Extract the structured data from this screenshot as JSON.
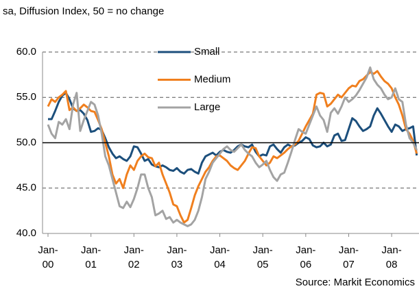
{
  "chart_data": {
    "type": "line",
    "title": "sa, Diffusion Index, 50 = no change",
    "source": "Source: Markit Economics",
    "categories": [
      "Jan-00",
      null,
      null,
      null,
      null,
      null,
      null,
      null,
      null,
      null,
      null,
      null,
      "Jan-01",
      null,
      null,
      null,
      null,
      null,
      null,
      null,
      null,
      null,
      null,
      null,
      "Jan-02",
      null,
      null,
      null,
      null,
      null,
      null,
      null,
      null,
      null,
      null,
      null,
      "Jan-03",
      null,
      null,
      null,
      null,
      null,
      null,
      null,
      null,
      null,
      null,
      null,
      "Jan-04",
      null,
      null,
      null,
      null,
      null,
      null,
      null,
      null,
      null,
      null,
      null,
      "Jan-05",
      null,
      null,
      null,
      null,
      null,
      null,
      null,
      null,
      null,
      null,
      null,
      "Jan-06",
      null,
      null,
      null,
      null,
      null,
      null,
      null,
      null,
      null,
      null,
      null,
      "Jan-07",
      null,
      null,
      null,
      null,
      null,
      null,
      null,
      null,
      null,
      null,
      null,
      "Jan-08",
      null,
      null,
      null,
      null,
      null,
      null,
      null
    ],
    "series": [
      {
        "name": "Small",
        "color": "#1c4f7c",
        "values": [
          52.6,
          52.6,
          53.5,
          54.5,
          55.2,
          55.5,
          54.8,
          53.8,
          53.5,
          53.6,
          53.2,
          52.5,
          51.2,
          51.3,
          51.6,
          51.4,
          50.5,
          49.5,
          48.8,
          48.3,
          48.5,
          48.2,
          48.0,
          48.5,
          49.6,
          49.5,
          48.8,
          48.0,
          48.2,
          47.6,
          47.4,
          47.3,
          47.5,
          47.3,
          47.0,
          46.9,
          47.2,
          46.8,
          46.6,
          47.0,
          47.1,
          46.8,
          46.6,
          47.8,
          48.5,
          48.7,
          48.9,
          48.6,
          49.0,
          49.2,
          49.0,
          48.9,
          49.2,
          49.6,
          49.8,
          49.6,
          49.5,
          49.8,
          49.0,
          48.5,
          48.7,
          48.6,
          49.6,
          49.8,
          49.3,
          48.9,
          49.5,
          49.8,
          49.6,
          49.7,
          50.0,
          50.2,
          50.6,
          50.4,
          49.7,
          49.5,
          49.6,
          50.0,
          49.6,
          49.8,
          50.8,
          51.0,
          50.2,
          50.3,
          51.5,
          52.7,
          52.4,
          51.8,
          51.3,
          51.5,
          51.8,
          53.0,
          53.8,
          53.2,
          52.5,
          51.8,
          51.2,
          52.0,
          51.8,
          51.3,
          51.5,
          51.6,
          51.8,
          48.6
        ]
      },
      {
        "name": "Medium",
        "color": "#f07f1e",
        "values": [
          54.0,
          54.8,
          54.5,
          55.0,
          55.3,
          55.7,
          53.6,
          53.9,
          53.5,
          53.8,
          54.2,
          53.9,
          53.5,
          53.4,
          52.5,
          51.5,
          50.0,
          48.5,
          46.5,
          45.5,
          46.0,
          45.0,
          46.5,
          47.5,
          47.0,
          48.0,
          48.5,
          48.8,
          48.4,
          48.3,
          47.4,
          47.8,
          46.5,
          45.5,
          44.5,
          43.2,
          43.0,
          42.0,
          41.2,
          41.5,
          42.8,
          44.2,
          45.2,
          46.0,
          46.8,
          47.3,
          48.0,
          48.5,
          48.6,
          48.3,
          48.0,
          47.5,
          47.2,
          47.0,
          47.5,
          48.0,
          48.8,
          49.5,
          49.4,
          48.5,
          48.0,
          47.5,
          47.8,
          48.5,
          48.3,
          48.6,
          48.9,
          49.3,
          49.6,
          49.8,
          50.2,
          51.0,
          51.8,
          52.5,
          53.2,
          55.3,
          55.5,
          55.4,
          54.0,
          54.3,
          54.8,
          55.3,
          55.0,
          55.5,
          56.0,
          56.3,
          56.2,
          56.8,
          57.0,
          57.4,
          57.8,
          57.6,
          57.9,
          57.3,
          56.8,
          56.5,
          56.0,
          55.0,
          54.2,
          53.0,
          51.5,
          51.0,
          50.2,
          48.8
        ]
      },
      {
        "name": "Large",
        "color": "#a3a3a3",
        "values": [
          52.0,
          51.0,
          50.5,
          52.3,
          52.0,
          52.6,
          51.5,
          54.2,
          55.5,
          51.3,
          52.5,
          53.5,
          54.5,
          54.2,
          53.0,
          51.0,
          48.5,
          47.5,
          46.0,
          44.5,
          43.0,
          42.8,
          43.5,
          42.9,
          43.8,
          45.0,
          46.5,
          46.5,
          45.0,
          44.0,
          42.0,
          42.2,
          42.5,
          41.6,
          41.8,
          41.2,
          41.5,
          41.2,
          41.0,
          40.8,
          41.0,
          41.5,
          42.5,
          44.0,
          46.0,
          46.8,
          47.8,
          48.3,
          48.8,
          49.3,
          49.6,
          49.2,
          49.0,
          49.4,
          49.8,
          49.2,
          48.8,
          48.5,
          47.8,
          47.3,
          47.6,
          48.0,
          47.0,
          46.2,
          45.8,
          46.5,
          46.7,
          47.8,
          49.0,
          50.3,
          51.5,
          51.2,
          51.0,
          52.0,
          53.0,
          54.0,
          53.0,
          52.5,
          51.2,
          53.3,
          53.8,
          53.2,
          54.0,
          55.0,
          54.5,
          54.8,
          55.2,
          55.8,
          56.5,
          57.2,
          58.3,
          57.0,
          56.4,
          56.0,
          55.3,
          54.8,
          55.0,
          56.0,
          54.8,
          54.5,
          52.0,
          50.5,
          50.0,
          49.2
        ]
      }
    ],
    "ylim": [
      40,
      60
    ],
    "yticks": [
      {
        "value": 40,
        "label": "40.0"
      },
      {
        "value": 45,
        "label": "45.0"
      },
      {
        "value": 50,
        "label": "50.0"
      },
      {
        "value": 55,
        "label": "55.0"
      },
      {
        "value": 60,
        "label": "60.0"
      }
    ],
    "reference_line": 50,
    "grid": true
  }
}
